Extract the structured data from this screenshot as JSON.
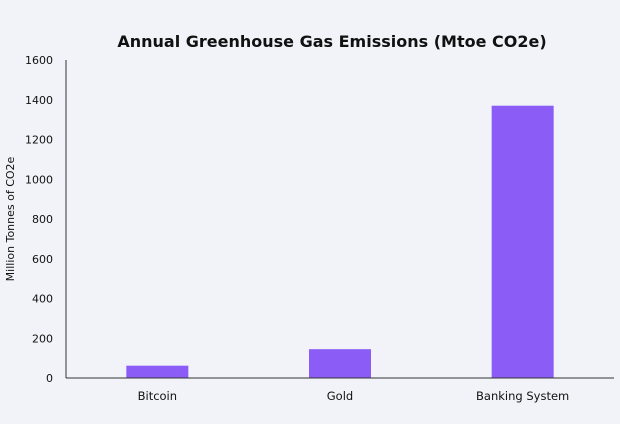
{
  "chart_data": {
    "type": "bar",
    "title": "Annual Greenhouse Gas Emissions (Mtoe CO2e)",
    "xlabel": "",
    "ylabel": "Million Tonnes of CO2e",
    "categories": [
      "Bitcoin",
      "Gold",
      "Banking System"
    ],
    "values": [
      62,
      145,
      1370
    ],
    "ylim": [
      0,
      1600
    ],
    "yticks": [
      0,
      200,
      400,
      600,
      800,
      1000,
      1200,
      1400,
      1600
    ],
    "grid": false,
    "legend": "none",
    "bar_color": "#8b5cf6",
    "axis_color": "#333333"
  }
}
